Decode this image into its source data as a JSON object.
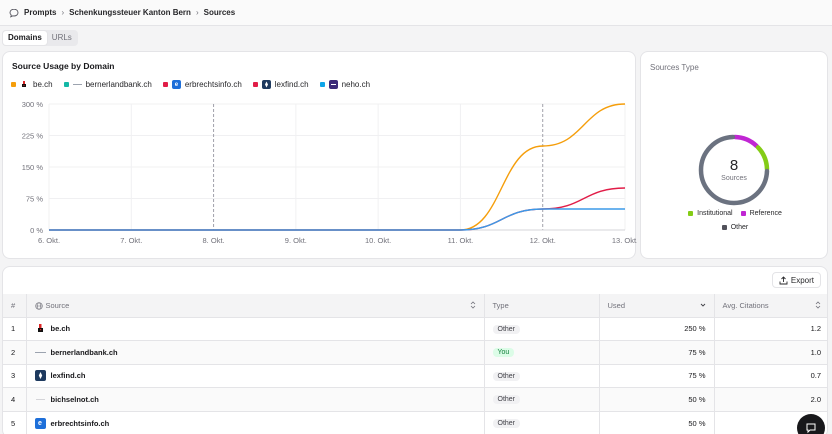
{
  "breadcrumb": {
    "items": [
      "Prompts",
      "Schenkungssteuer Kanton Bern",
      "Sources"
    ],
    "separator": "›"
  },
  "tabs": [
    {
      "label": "Domains",
      "active": true
    },
    {
      "label": "URLs",
      "active": false
    }
  ],
  "usage_card": {
    "title": "Source Usage by Domain",
    "legend": [
      {
        "label": "be.ch",
        "color": "#f59e0b",
        "icon": "be-ch-favicon"
      },
      {
        "label": "bernerlandbank.ch",
        "color": "#14b8a6",
        "icon": "bernerlandbank-favicon"
      },
      {
        "label": "erbrechtsinfo.ch",
        "color": "#e11d48",
        "icon": "erbrechtsinfo-favicon"
      },
      {
        "label": "lexfind.ch",
        "color": "#e11d48",
        "icon": "lexfind-favicon"
      },
      {
        "label": "neho.ch",
        "color": "#0ea5e9",
        "icon": "neho-favicon"
      }
    ]
  },
  "chart_data": {
    "type": "line",
    "title": "Source Usage by Domain",
    "x": [
      "6. Okt.",
      "7. Okt.",
      "8. Okt.",
      "9. Okt.",
      "10. Okt.",
      "11. Okt.",
      "12. Okt.",
      "13. Okt."
    ],
    "y_ticks": [
      "0 %",
      "75 %",
      "150 %",
      "225 %",
      "300 %"
    ],
    "ylim": [
      0,
      300
    ],
    "dashed_x": [
      "8. Okt.",
      "12. Okt."
    ],
    "series": [
      {
        "name": "be.ch",
        "color": "#f59e0b",
        "values": [
          0,
          0,
          0,
          0,
          0,
          0,
          200,
          300
        ]
      },
      {
        "name": "lexfind.ch",
        "color": "#e11d48",
        "values": [
          0,
          0,
          0,
          0,
          0,
          0,
          50,
          100
        ]
      },
      {
        "name": "neho.ch",
        "color": "#3b9ae8",
        "values": [
          0,
          0,
          0,
          0,
          0,
          0,
          50,
          50
        ]
      }
    ]
  },
  "sources_type": {
    "title": "Sources Type",
    "count": "8",
    "count_label": "Sources",
    "legend": [
      {
        "label": "Institutional",
        "color": "#84cc16"
      },
      {
        "label": "Reference",
        "color": "#c026d3"
      },
      {
        "label": "Other",
        "color": "#52525b"
      }
    ],
    "segments": [
      {
        "label": "Reference",
        "value": 1,
        "color": "#c026d3"
      },
      {
        "label": "Institutional",
        "value": 1,
        "color": "#84cc16"
      },
      {
        "label": "Other",
        "value": 6,
        "color": "#6b7280"
      }
    ]
  },
  "table": {
    "export_label": "Export",
    "columns": [
      "#",
      "Source",
      "Type",
      "Used",
      "Avg. Citations"
    ],
    "rows": [
      {
        "n": "1",
        "source": "be.ch",
        "icon": "be-ch-favicon",
        "type": "Other",
        "used": "250 %",
        "avg": "1.2"
      },
      {
        "n": "2",
        "source": "bernerlandbank.ch",
        "icon": "bernerlandbank-favicon",
        "type": "You",
        "used": "75 %",
        "avg": "1.0"
      },
      {
        "n": "3",
        "source": "lexfind.ch",
        "icon": "lexfind-favicon",
        "type": "Other",
        "used": "75 %",
        "avg": "0.7"
      },
      {
        "n": "4",
        "source": "bichselnot.ch",
        "icon": "bichselnot-favicon",
        "type": "Other",
        "used": "50 %",
        "avg": "2.0"
      },
      {
        "n": "5",
        "source": "erbrechtsinfo.ch",
        "icon": "erbrechtsinfo-favicon",
        "type": "Other",
        "used": "50 %",
        "avg": ""
      }
    ]
  }
}
